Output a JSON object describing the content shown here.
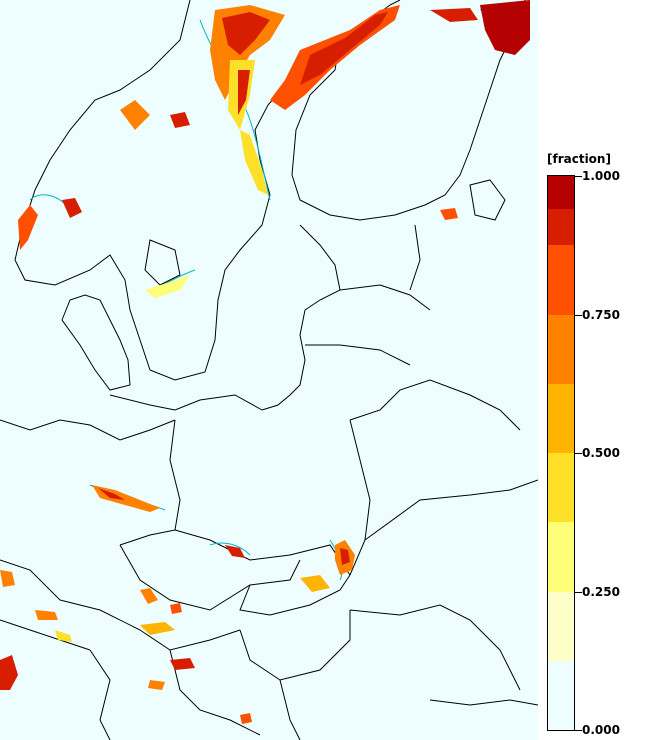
{
  "legend": {
    "unit_label": "[fraction]",
    "ticks": [
      {
        "value": 1.0,
        "label": "1.000"
      },
      {
        "value": 0.75,
        "label": "0.750"
      },
      {
        "value": 0.5,
        "label": "0.500"
      },
      {
        "value": 0.25,
        "label": "0.250"
      },
      {
        "value": 0.0,
        "label": "0.000"
      }
    ],
    "color_bins": [
      {
        "from": 0.0,
        "to": 0.125,
        "color": "#eefefe"
      },
      {
        "from": 0.125,
        "to": 0.25,
        "color": "#fefec8"
      },
      {
        "from": 0.25,
        "to": 0.375,
        "color": "#fefe78"
      },
      {
        "from": 0.375,
        "to": 0.5,
        "color": "#fee028"
      },
      {
        "from": 0.5,
        "to": 0.625,
        "color": "#feb400"
      },
      {
        "from": 0.625,
        "to": 0.75,
        "color": "#fe8200"
      },
      {
        "from": 0.75,
        "to": 0.875,
        "color": "#fe5000"
      },
      {
        "from": 0.875,
        "to": 1.0,
        "color": "#d81e00"
      },
      {
        "from": 0.94,
        "to": 1.0,
        "color": "#b40000"
      }
    ]
  },
  "map": {
    "region": "Northern and Central Europe",
    "background_color": "#eefefe",
    "border_color": "#000000",
    "contour_color": "#00b4c8"
  }
}
